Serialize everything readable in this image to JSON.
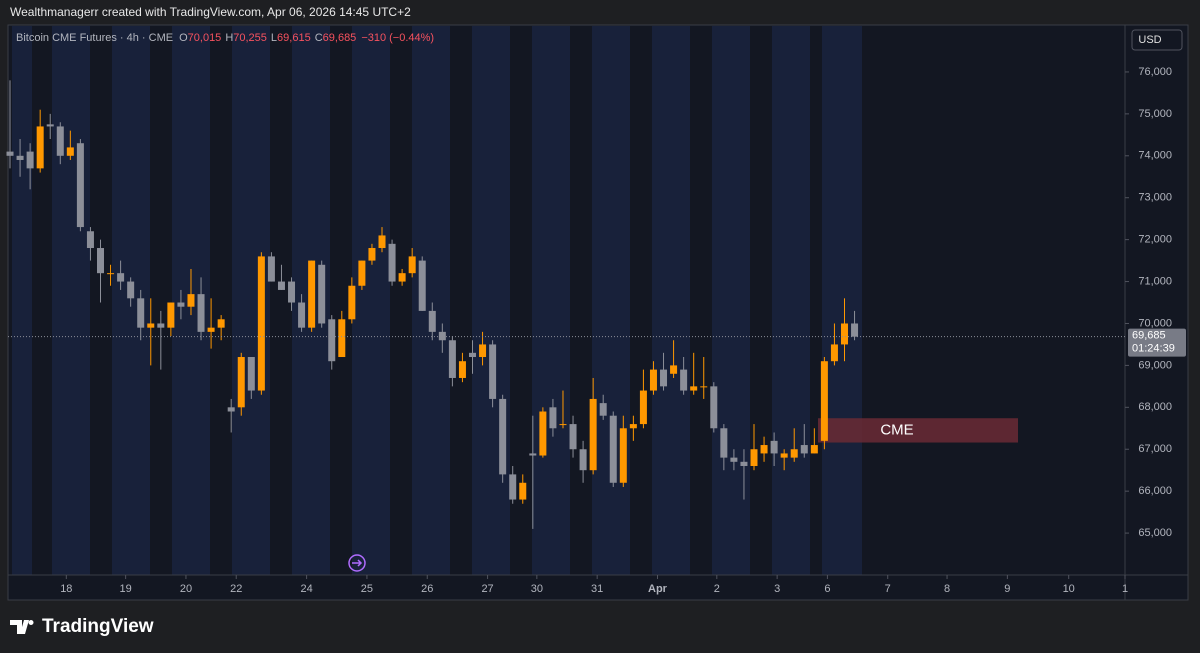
{
  "header": "Wealthmanagerr created with TradingView.com, Apr 06, 2026 14:45 UTC+2",
  "footer": {
    "brand": "TradingView"
  },
  "chart_data": {
    "type": "candlestick",
    "legend": {
      "name": "Bitcoin CME Futures · 4h · CME",
      "fields": [
        {
          "key": "O",
          "value": "70,015"
        },
        {
          "key": "H",
          "value": "70,255"
        },
        {
          "key": "L",
          "value": "69,615"
        },
        {
          "key": "C",
          "value": "69,685"
        }
      ],
      "change": "−310 (−0.44%)"
    },
    "currency": "USD",
    "up_color": "#ff9800",
    "down_color": "#8c8f99",
    "open": [
      74100,
      74000,
      74100,
      73700,
      74750,
      74700,
      74000,
      74300,
      72200,
      71800,
      71200,
      71200,
      71000,
      70600,
      69900,
      70000,
      69900,
      70500,
      70400,
      70700,
      69800,
      69900,
      68000,
      68000,
      69200,
      68400,
      71600,
      71000,
      71000,
      70500,
      69900,
      71400,
      70100,
      69200,
      70100,
      70900,
      71500,
      71800,
      71900,
      71000,
      71200,
      71500,
      70300,
      69800,
      69600,
      68700,
      69300,
      69200,
      69500,
      68200,
      66400,
      65800,
      66900,
      66850,
      68000,
      67600,
      67600,
      67000,
      66500,
      68100,
      67800,
      66200,
      67500,
      67600,
      68400,
      68900,
      68800,
      68900,
      68400,
      68500,
      68500,
      67500,
      66800,
      66700,
      66600,
      66900,
      67200,
      66800,
      66800,
      67100,
      66900,
      67200,
      69100,
      69500,
      70000
    ],
    "high": [
      75800,
      74400,
      74300,
      75100,
      75000,
      74800,
      74600,
      74400,
      72300,
      72000,
      71400,
      71500,
      71100,
      70800,
      70600,
      70300,
      70500,
      70800,
      71300,
      71100,
      70600,
      70200,
      68200,
      69300,
      69200,
      71700,
      71700,
      71400,
      71100,
      70700,
      71500,
      71500,
      70200,
      70300,
      71100,
      71500,
      71900,
      72300,
      72000,
      71300,
      71800,
      71600,
      70500,
      70000,
      69700,
      69300,
      69600,
      69800,
      69600,
      68300,
      66600,
      66400,
      67800,
      68000,
      68200,
      68400,
      67800,
      67200,
      68700,
      68300,
      67900,
      67800,
      67800,
      68900,
      69100,
      69300,
      69600,
      69200,
      69300,
      69200,
      68600,
      67600,
      67000,
      67000,
      67600,
      67300,
      67400,
      67000,
      67500,
      67600,
      67500,
      69200,
      70000,
      70600,
      70300
    ],
    "low": [
      73700,
      73500,
      73200,
      73600,
      74400,
      73800,
      73900,
      72200,
      71500,
      70500,
      70900,
      70800,
      70400,
      69600,
      69000,
      68900,
      69700,
      70100,
      70200,
      69600,
      69400,
      69600,
      67400,
      67800,
      68200,
      68300,
      71000,
      70800,
      70300,
      69800,
      69800,
      69900,
      68900,
      69200,
      70000,
      70800,
      71400,
      71700,
      70900,
      70900,
      71100,
      70300,
      69600,
      69300,
      68500,
      68600,
      68800,
      69000,
      68000,
      66200,
      65700,
      65700,
      65100,
      66800,
      67300,
      67500,
      66800,
      66200,
      66400,
      67700,
      66100,
      66100,
      67200,
      67500,
      68300,
      68400,
      68700,
      68300,
      68300,
      68200,
      67400,
      66500,
      66500,
      65800,
      66500,
      66700,
      66600,
      66500,
      66700,
      66800,
      66900,
      67000,
      69000,
      69100,
      69600
    ],
    "close": [
      74000,
      73900,
      73700,
      74700,
      74700,
      74000,
      74200,
      72300,
      71800,
      71200,
      71200,
      71000,
      70600,
      69900,
      70000,
      69900,
      70500,
      70400,
      70700,
      69800,
      69900,
      70100,
      67900,
      69200,
      68400,
      71600,
      71000,
      70800,
      70500,
      69900,
      71500,
      70000,
      69100,
      70100,
      70900,
      71500,
      71800,
      72100,
      71000,
      71200,
      71600,
      70300,
      69800,
      69600,
      68700,
      69100,
      69200,
      69500,
      68200,
      66400,
      65800,
      66200,
      66850,
      67900,
      67500,
      67600,
      67000,
      66500,
      68200,
      67800,
      66200,
      67500,
      67600,
      68400,
      68900,
      68500,
      69000,
      68400,
      68500,
      68500,
      67500,
      66800,
      66700,
      66600,
      67000,
      67100,
      66900,
      66900,
      67000,
      66900,
      67100,
      69100,
      69500,
      70000,
      69685
    ],
    "last_price": 69685,
    "last_price_label": "69,685",
    "countdown": "01:24:39",
    "annotation": {
      "text": "CME",
      "range": [
        67160,
        67740
      ]
    },
    "ylim": [
      64000,
      77120
    ],
    "yticks": [
      {
        "value": 65000,
        "label": "65,000"
      },
      {
        "value": 66000,
        "label": "66,000"
      },
      {
        "value": 67000,
        "label": "67,000"
      },
      {
        "value": 68000,
        "label": "68,000"
      },
      {
        "value": 69000,
        "label": "69,000"
      },
      {
        "value": 70000,
        "label": "70,000"
      },
      {
        "value": 71000,
        "label": "71,000"
      },
      {
        "value": 72000,
        "label": "72,000"
      },
      {
        "value": 73000,
        "label": "73,000"
      },
      {
        "value": 74000,
        "label": "74,000"
      },
      {
        "value": 75000,
        "label": "75,000"
      },
      {
        "value": 76000,
        "label": "76,000"
      }
    ],
    "xlim": [
      -0.2,
      110.9
    ],
    "xticks": [
      {
        "value": 5.6,
        "label": "18"
      },
      {
        "value": 11.5,
        "label": "19"
      },
      {
        "value": 17.5,
        "label": "20"
      },
      {
        "value": 22.5,
        "label": "22"
      },
      {
        "value": 29.5,
        "label": "24"
      },
      {
        "value": 35.5,
        "label": "25"
      },
      {
        "value": 41.5,
        "label": "26"
      },
      {
        "value": 47.5,
        "label": "27"
      },
      {
        "value": 52.4,
        "label": "30"
      },
      {
        "value": 58.4,
        "label": "31"
      },
      {
        "value": 64.4,
        "label": "Apr"
      },
      {
        "value": 70.3,
        "label": "2"
      },
      {
        "value": 76.3,
        "label": "3"
      },
      {
        "value": 81.3,
        "label": "6"
      },
      {
        "value": 87.3,
        "label": "7"
      },
      {
        "value": 93.2,
        "label": "8"
      },
      {
        "value": 99.2,
        "label": "9"
      },
      {
        "value": 105.3,
        "label": "10"
      },
      {
        "value": 110.9,
        "label": "1"
      }
    ],
    "grid": false
  }
}
